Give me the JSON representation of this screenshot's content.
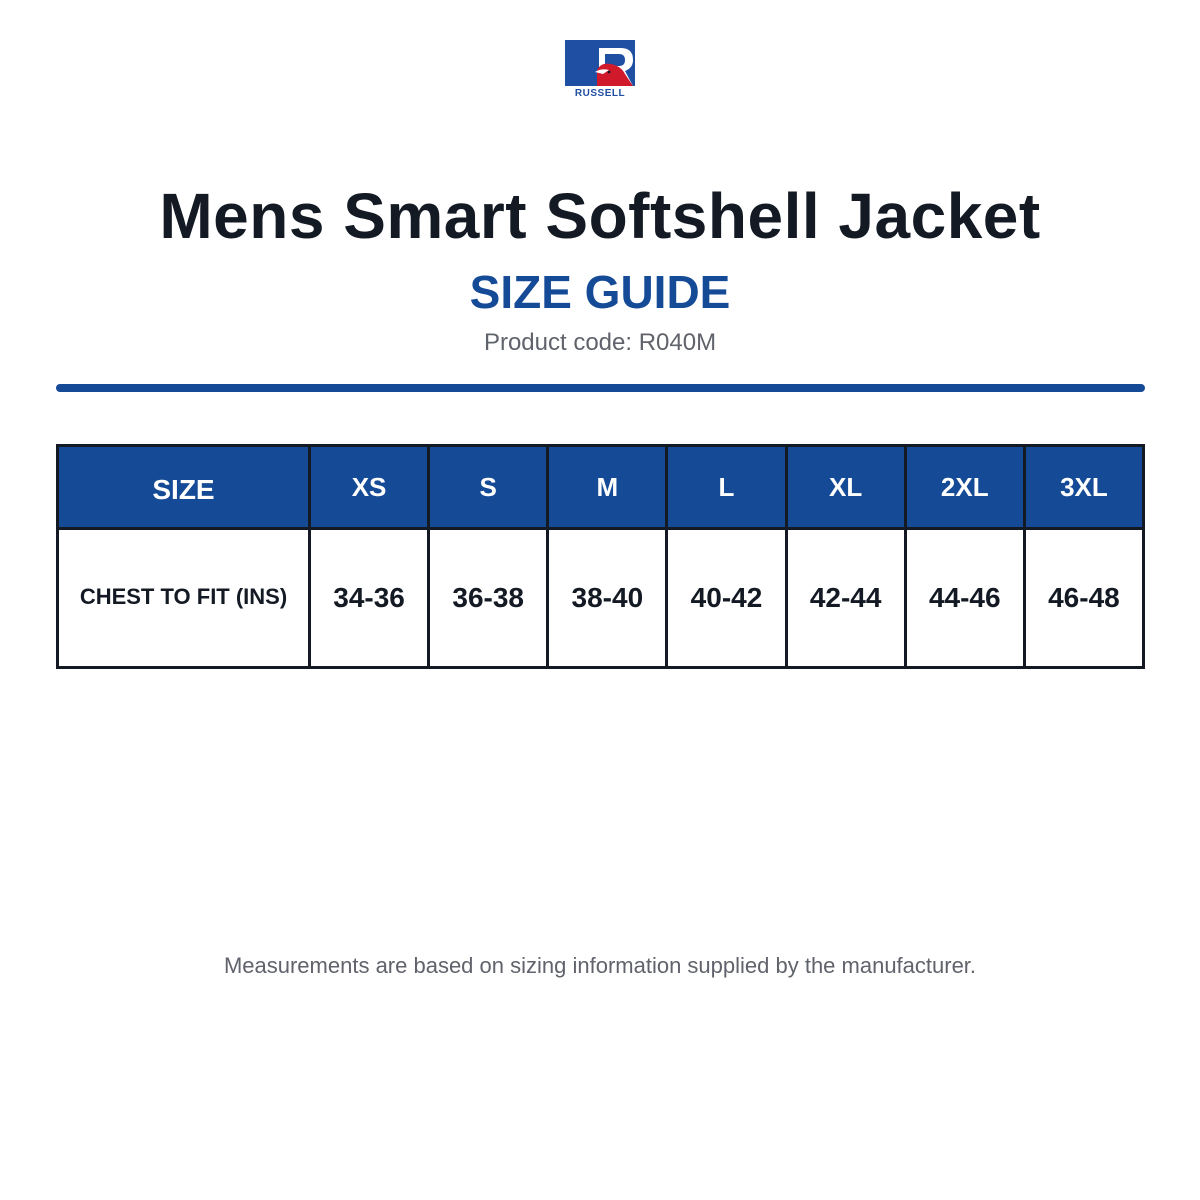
{
  "brand": {
    "name": "RUSSELL",
    "logo_letter": "R",
    "colors": {
      "blue": "#1f4fa3",
      "red": "#d0192b"
    }
  },
  "title": "Mens Smart Softshell Jacket",
  "subtitle": "SIZE GUIDE",
  "product_code": "Product code: R040M",
  "accent_color": "#154a97",
  "table": {
    "header_label": "SIZE",
    "sizes": [
      "XS",
      "S",
      "M",
      "L",
      "XL",
      "2XL",
      "3XL"
    ],
    "rows": [
      {
        "label": "CHEST TO FIT (INS)",
        "values": [
          "34-36",
          "36-38",
          "38-40",
          "40-42",
          "42-44",
          "44-46",
          "46-48"
        ]
      }
    ]
  },
  "footnote": "Measurements are based on sizing information supplied by the manufacturer."
}
